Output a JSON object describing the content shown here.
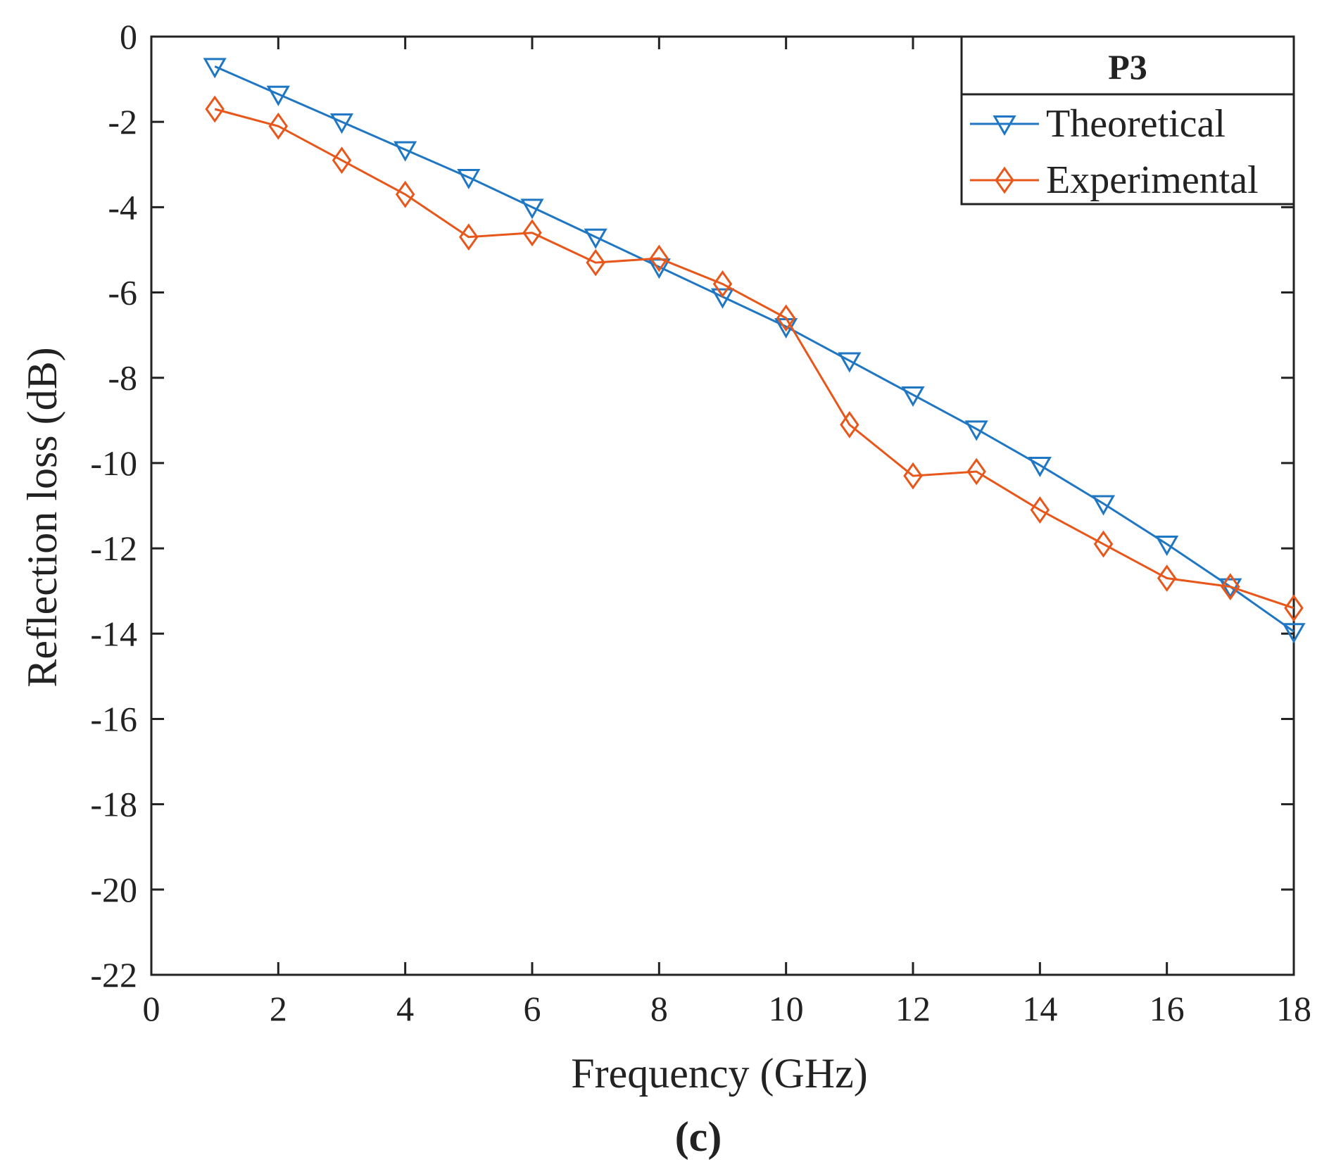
{
  "chart_data": {
    "type": "line",
    "xlabel": "Frequency (GHz)",
    "ylabel": "Reflection loss (dB)",
    "xlim": [
      0,
      18
    ],
    "ylim": [
      -22,
      0
    ],
    "xticks": [
      0,
      2,
      4,
      6,
      8,
      10,
      12,
      14,
      16,
      18
    ],
    "yticks": [
      0,
      -2,
      -4,
      -6,
      -8,
      -10,
      -12,
      -14,
      -16,
      -18,
      -20,
      -22
    ],
    "grid": false,
    "legend": {
      "title": "P3",
      "placement": "top-right"
    },
    "panel_label": "(c)",
    "series": [
      {
        "name": "Theoretical",
        "color": "#1f77c4",
        "marker": "triangle-down",
        "x": [
          1,
          2,
          3,
          4,
          5,
          6,
          7,
          8,
          9,
          10,
          11,
          12,
          13,
          14,
          15,
          16,
          17,
          18
        ],
        "y": [
          -0.7,
          -1.35,
          -2.0,
          -2.65,
          -3.3,
          -4.0,
          -4.7,
          -5.4,
          -6.1,
          -6.8,
          -7.6,
          -8.4,
          -9.2,
          -10.05,
          -10.95,
          -11.9,
          -12.9,
          -13.95
        ]
      },
      {
        "name": "Experimental",
        "color": "#e8561a",
        "marker": "diamond",
        "x": [
          1,
          2,
          3,
          4,
          5,
          6,
          7,
          8,
          9,
          10,
          11,
          12,
          13,
          14,
          15,
          16,
          17,
          18
        ],
        "y": [
          -1.7,
          -2.1,
          -2.9,
          -3.7,
          -4.7,
          -4.6,
          -5.3,
          -5.2,
          -5.8,
          -6.6,
          -9.1,
          -10.3,
          -10.2,
          -11.1,
          -11.9,
          -12.7,
          -12.9,
          -13.4
        ]
      }
    ]
  }
}
